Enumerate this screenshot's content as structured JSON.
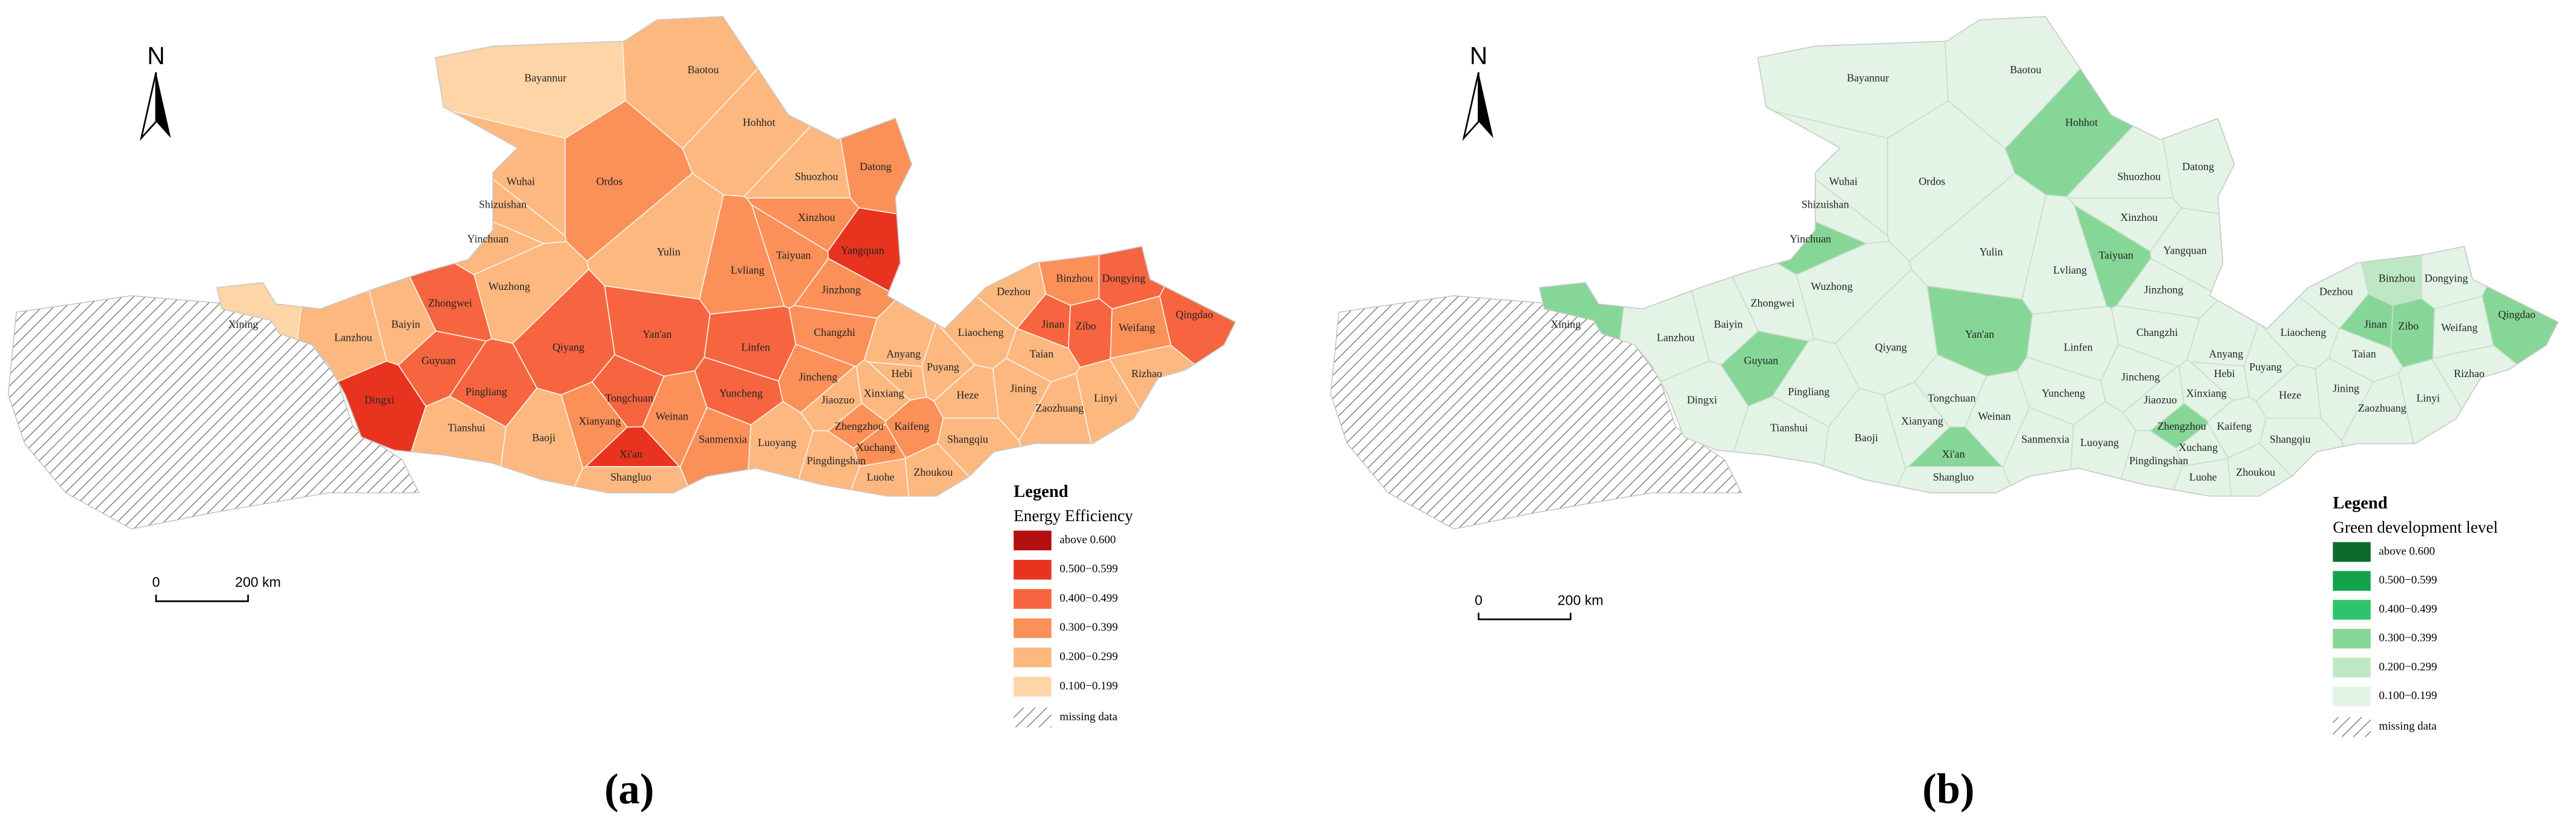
{
  "maps": [
    {
      "caption": "(a)",
      "north": "N",
      "scale": {
        "start": "0",
        "end": "200 km"
      },
      "legend": {
        "title": "Legend",
        "subtitle": "Energy Efficiency",
        "missing": "missing data",
        "items": [
          {
            "label": "above 0.600",
            "color": "#b3100f"
          },
          {
            "label": "0.500−0.599",
            "color": "#e8341f"
          },
          {
            "label": "0.400−0.499",
            "color": "#f6653f"
          },
          {
            "label": "0.300−0.399",
            "color": "#fb9059"
          },
          {
            "label": "0.200−0.299",
            "color": "#fdb880"
          },
          {
            "label": "0.100−0.199",
            "color": "#fdd5a6"
          }
        ]
      },
      "cities": [
        "Bayannur",
        "Baotou",
        "Hohhot",
        "Datong",
        "Shuozhou",
        "Wuhai",
        "Ordos",
        "Shizuishan",
        "Xinzhou",
        "Yinchuan",
        "Yulin",
        "Taiyuan",
        "Yangquan",
        "Lvliang",
        "Jinzhong",
        "Wuzhong",
        "Zhongwei",
        "Baiyin",
        "Lanzhou",
        "Xining",
        "Yan'an",
        "Qiyang",
        "Linfen",
        "Changzhi",
        "Dezhou",
        "Binzhou",
        "Dongying",
        "Qingdao",
        "Jinan",
        "Zibo",
        "Weifang",
        "Liaocheng",
        "Taian",
        "Rizhao",
        "Anyang",
        "Puyang",
        "Hebi",
        "Jincheng",
        "Jiaozuo",
        "Xinxiang",
        "Guyuan",
        "Dingxi",
        "Pingliang",
        "Tongchuan",
        "Yuncheng",
        "Weinan",
        "Jining",
        "Heze",
        "Linyi",
        "Zaozhuang",
        "Tianshui",
        "Xianyang",
        "Baoji",
        "Sanmenxia",
        "Luoyang",
        "Zhengzhou",
        "Kaifeng",
        "Shangqiu",
        "Xuchang",
        "Pingdingshan",
        "Xi'an",
        "Luohe",
        "Zhoukou",
        "Shangluo"
      ]
    },
    {
      "caption": "(b)",
      "north": "N",
      "scale": {
        "start": "0",
        "end": "200 km"
      },
      "legend": {
        "title": "Legend",
        "subtitle": "Green development level",
        "missing": "missing data",
        "items": [
          {
            "label": "above 0.600",
            "color": "#0b6b2d"
          },
          {
            "label": "0.500−0.599",
            "color": "#12a34b"
          },
          {
            "label": "0.400−0.499",
            "color": "#2fc46b"
          },
          {
            "label": "0.300−0.399",
            "color": "#86d797"
          },
          {
            "label": "0.200−0.299",
            "color": "#bde8c3"
          },
          {
            "label": "0.100−0.199",
            "color": "#e3f4e6"
          }
        ]
      },
      "cities": [
        "Bayannur",
        "Baotou",
        "Hohhot",
        "Datong",
        "Shuozhou",
        "Wuhai",
        "Ordos",
        "Shizuishan",
        "Xinzhou",
        "Yinchuan",
        "Yulin",
        "Taiyuan",
        "Yangquan",
        "Lvliang",
        "Jinzhong",
        "Wuzhong",
        "Zhongwei",
        "Baiyin",
        "Lanzhou",
        "Xining",
        "Yan'an",
        "Qiyang",
        "Linfen",
        "Changzhi",
        "Dezhou",
        "Binzhou",
        "Dongying",
        "Qingdao",
        "Jinan",
        "Zibo",
        "Weifang",
        "Liaocheng",
        "Taian",
        "Rizhao",
        "Anyang",
        "Puyang",
        "Hebi",
        "Jincheng",
        "Jiaozuo",
        "Xinxiang",
        "Guyuan",
        "Dingxi",
        "Pingliang",
        "Tongchuan",
        "Yuncheng",
        "Weinan",
        "Jining",
        "Heze",
        "Linyi",
        "Zaozhuang",
        "Tianshui",
        "Xianyang",
        "Baoji",
        "Sanmenxia",
        "Luoyang",
        "Zhengzhou",
        "Kaifeng",
        "Shangqiu",
        "Xuchang",
        "Pingdingshan",
        "Xi'an",
        "Luohe",
        "Zhoukou",
        "Shangluo"
      ]
    }
  ]
}
